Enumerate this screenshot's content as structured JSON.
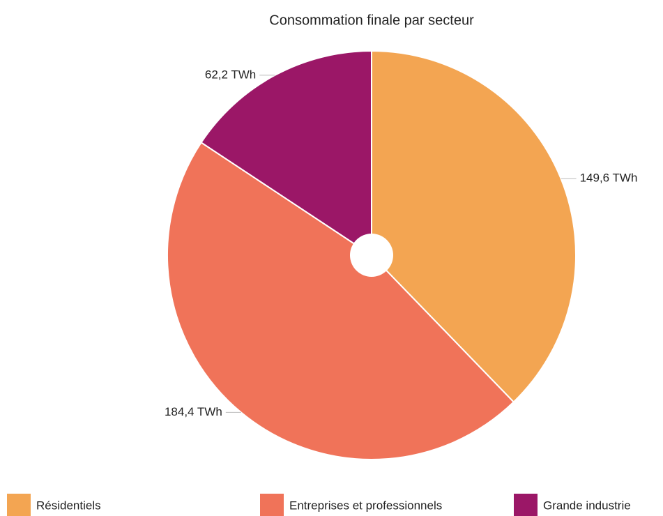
{
  "chart_data": {
    "type": "pie",
    "title": "Consommation finale par secteur",
    "categories": [
      "Résidentiels",
      "Entreprises et professionnels",
      "Grande industrie"
    ],
    "values": [
      149.6,
      184.4,
      62.2
    ],
    "value_labels": [
      "149,6 TWh",
      "184,4 TWh",
      "62,2 TWh"
    ],
    "colors": [
      "#f3a552",
      "#f07359",
      "#9b1767"
    ]
  }
}
